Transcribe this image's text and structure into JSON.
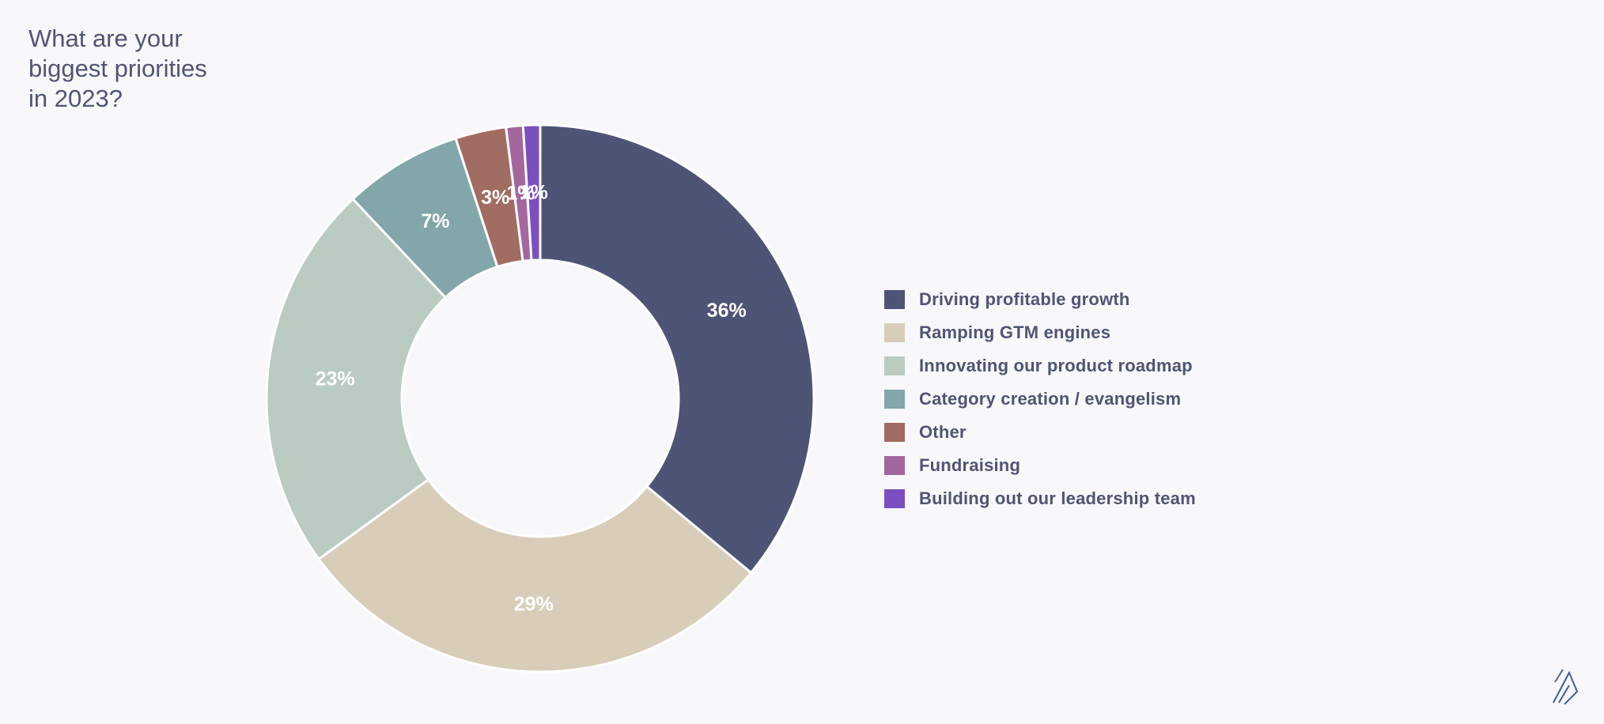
{
  "title": "What are your\nbiggest priorities\nin 2023?",
  "chart_data": {
    "type": "pie",
    "donut": true,
    "title": "What are your biggest priorities in 2023?",
    "legend_position": "right",
    "labels_format": "percent",
    "series": [
      {
        "name": "Driving profitable growth",
        "value": 36,
        "label": "36%",
        "color": "#4e5475"
      },
      {
        "name": "Ramping GTM engines",
        "value": 29,
        "label": "29%",
        "color": "#d8cdb9"
      },
      {
        "name": "Innovating our product roadmap",
        "value": 23,
        "label": "23%",
        "color": "#bacbc1"
      },
      {
        "name": "Category creation / evangelism",
        "value": 7,
        "label": "7%",
        "color": "#82a6a9"
      },
      {
        "name": "Other",
        "value": 3,
        "label": "3%",
        "color": "#a16c61"
      },
      {
        "name": "Fundraising",
        "value": 1,
        "label": "1%",
        "color": "#a3679d"
      },
      {
        "name": "Building out our leadership team",
        "value": 1,
        "label": "1%",
        "color": "#7c4fc0"
      }
    ]
  },
  "logo_icon": "brand-slash-logo-icon"
}
